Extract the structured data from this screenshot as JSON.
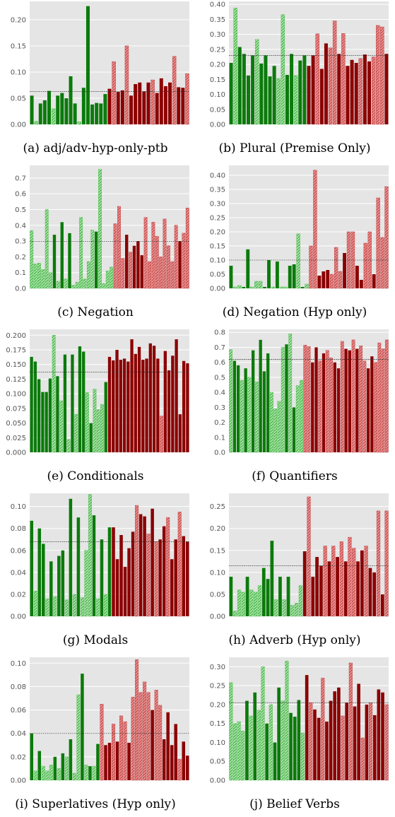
{
  "colors": {
    "background": "#e5e5e5",
    "dark_green": "#0b7a0b",
    "light_green": "#9ee89e",
    "dark_red": "#8b0000",
    "light_red": "#f08a8a",
    "reference_line": "#333333"
  },
  "chart_data": [
    {
      "type": "bar",
      "caption": "(a) adj/adv-hyp-only-ptb",
      "ylim": [
        0,
        0.235
      ],
      "yticks": [
        "0.00",
        "0.05",
        "0.10",
        "0.15",
        "0.20"
      ],
      "ytick_values": [
        0,
        0.05,
        0.1,
        0.15,
        0.2
      ],
      "reference_line": 0.063,
      "values": [
        0.055,
        0.006,
        0.04,
        0.046,
        0.064,
        0.03,
        0.055,
        0.06,
        0.05,
        0.092,
        0.04,
        0.005,
        0.07,
        0.226,
        0.038,
        0.041,
        0.04,
        0.058,
        0.068,
        0.12,
        0.062,
        0.065,
        0.15,
        0.055,
        0.077,
        0.08,
        0.063,
        0.08,
        0.085,
        0.06,
        0.088,
        0.073,
        0.08,
        0.13,
        0.071,
        0.07,
        0.097
      ],
      "kinds": [
        "G",
        "g",
        "G",
        "G",
        "G",
        "g",
        "G",
        "G",
        "G",
        "G",
        "G",
        "g",
        "G",
        "G",
        "G",
        "G",
        "G",
        "G",
        "R",
        "r",
        "R",
        "R",
        "r",
        "R",
        "R",
        "R",
        "R",
        "R",
        "r",
        "R",
        "R",
        "R",
        "R",
        "r",
        "R",
        "R",
        "r"
      ]
    },
    {
      "type": "bar",
      "caption": "(b) Plural (Premise Only)",
      "ylim": [
        0,
        0.41
      ],
      "yticks": [
        "0.00",
        "0.05",
        "0.10",
        "0.15",
        "0.20",
        "0.25",
        "0.30",
        "0.35",
        "0.40"
      ],
      "ytick_values": [
        0,
        0.05,
        0.1,
        0.15,
        0.2,
        0.25,
        0.3,
        0.35,
        0.4
      ],
      "reference_line": 0.23,
      "values": [
        0.205,
        0.388,
        0.258,
        0.235,
        0.163,
        0.23,
        0.283,
        0.203,
        0.23,
        0.16,
        0.195,
        0.153,
        0.366,
        0.165,
        0.235,
        0.163,
        0.213,
        0.23,
        0.195,
        0.23,
        0.302,
        0.185,
        0.27,
        0.255,
        0.345,
        0.235,
        0.303,
        0.195,
        0.215,
        0.205,
        0.22,
        0.233,
        0.21,
        0.225,
        0.33,
        0.325,
        0.235
      ],
      "kinds": [
        "G",
        "g",
        "G",
        "G",
        "G",
        "G",
        "g",
        "G",
        "G",
        "G",
        "G",
        "g",
        "g",
        "G",
        "G",
        "g",
        "G",
        "G",
        "R",
        "R",
        "r",
        "R",
        "R",
        "r",
        "r",
        "R",
        "r",
        "R",
        "R",
        "R",
        "r",
        "R",
        "R",
        "r",
        "r",
        "r",
        "R"
      ]
    },
    {
      "type": "bar",
      "caption": "(c) Negation",
      "ylim": [
        0,
        0.78
      ],
      "yticks": [
        "0.0",
        "0.1",
        "0.2",
        "0.3",
        "0.4",
        "0.5",
        "0.6",
        "0.7"
      ],
      "ytick_values": [
        0,
        0.1,
        0.2,
        0.3,
        0.4,
        0.5,
        0.6,
        0.7
      ],
      "reference_line": 0.298,
      "values": [
        0.366,
        0.155,
        0.16,
        0.12,
        0.5,
        0.1,
        0.34,
        0.045,
        0.42,
        0.06,
        0.35,
        0.02,
        0.04,
        0.45,
        0.06,
        0.17,
        0.37,
        0.36,
        0.755,
        0.03,
        0.11,
        0.135,
        0.41,
        0.52,
        0.19,
        0.34,
        0.23,
        0.27,
        0.3,
        0.21,
        0.45,
        0.17,
        0.42,
        0.33,
        0.2,
        0.44,
        0.27,
        0.17,
        0.4,
        0.3,
        0.35,
        0.51
      ],
      "kinds": [
        "g",
        "g",
        "g",
        "g",
        "g",
        "g",
        "G",
        "g",
        "G",
        "g",
        "G",
        "g",
        "g",
        "g",
        "g",
        "g",
        "g",
        "G",
        "g",
        "g",
        "g",
        "g",
        "r",
        "r",
        "r",
        "R",
        "r",
        "R",
        "R",
        "R",
        "r",
        "r",
        "r",
        "r",
        "r",
        "r",
        "r",
        "r",
        "r",
        "R",
        "r",
        "r"
      ]
    },
    {
      "type": "bar",
      "caption": "(d) Negation (Hyp only)",
      "ylim": [
        0,
        0.435
      ],
      "yticks": [
        "0.00",
        "0.05",
        "0.10",
        "0.15",
        "0.20",
        "0.25",
        "0.30",
        "0.35",
        "0.40"
      ],
      "ytick_values": [
        0,
        0.05,
        0.1,
        0.15,
        0.2,
        0.25,
        0.3,
        0.35,
        0.4
      ],
      "reference_line": 0.1,
      "values": [
        0.08,
        0.005,
        0.01,
        0.005,
        0.138,
        0.005,
        0.025,
        0.025,
        0.005,
        0.1,
        0.005,
        0.095,
        0.005,
        0.005,
        0.08,
        0.085,
        0.193,
        0.005,
        0.015,
        0.15,
        0.418,
        0.045,
        0.06,
        0.065,
        0.05,
        0.145,
        0.06,
        0.125,
        0.2,
        0.2,
        0.08,
        0.03,
        0.16,
        0.2,
        0.05,
        0.32,
        0.18,
        0.36
      ],
      "kinds": [
        "G",
        "g",
        "g",
        "G",
        "G",
        "g",
        "g",
        "g",
        "G",
        "G",
        "g",
        "G",
        "g",
        "g",
        "G",
        "G",
        "g",
        "G",
        "g",
        "r",
        "r",
        "R",
        "R",
        "R",
        "r",
        "r",
        "r",
        "R",
        "r",
        "r",
        "R",
        "R",
        "r",
        "r",
        "R",
        "r",
        "r",
        "r"
      ]
    },
    {
      "type": "bar",
      "caption": "(e) Conditionals",
      "ylim": [
        0,
        0.21
      ],
      "yticks": [
        "0.000",
        "0.025",
        "0.050",
        "0.075",
        "0.100",
        "0.125",
        "0.150",
        "0.175",
        "0.200"
      ],
      "ytick_values": [
        0,
        0.025,
        0.05,
        0.075,
        0.1,
        0.125,
        0.15,
        0.175,
        0.2
      ],
      "reference_line": 0.137,
      "values": [
        0.163,
        0.155,
        0.125,
        0.103,
        0.103,
        0.126,
        0.2,
        0.13,
        0.088,
        0.167,
        0.022,
        0.167,
        0.065,
        0.181,
        0.172,
        0.102,
        0.05,
        0.108,
        0.073,
        0.082,
        0.12,
        0.163,
        0.157,
        0.175,
        0.158,
        0.16,
        0.155,
        0.193,
        0.168,
        0.18,
        0.158,
        0.16,
        0.186,
        0.182,
        0.16,
        0.062,
        0.173,
        0.14,
        0.165,
        0.193,
        0.065,
        0.156,
        0.152
      ],
      "kinds": [
        "G",
        "G",
        "G",
        "G",
        "G",
        "G",
        "g",
        "G",
        "g",
        "G",
        "g",
        "G",
        "g",
        "G",
        "G",
        "g",
        "G",
        "g",
        "g",
        "g",
        "G",
        "R",
        "R",
        "R",
        "R",
        "R",
        "R",
        "R",
        "R",
        "R",
        "R",
        "R",
        "R",
        "R",
        "R",
        "r",
        "R",
        "R",
        "R",
        "R",
        "R",
        "R",
        "R"
      ]
    },
    {
      "type": "bar",
      "caption": "(f) Quantifiers",
      "ylim": [
        0,
        0.82
      ],
      "yticks": [
        "0.0",
        "0.1",
        "0.2",
        "0.3",
        "0.4",
        "0.5",
        "0.6",
        "0.7",
        "0.8"
      ],
      "ytick_values": [
        0,
        0.1,
        0.2,
        0.3,
        0.4,
        0.5,
        0.6,
        0.7,
        0.8
      ],
      "reference_line": 0.62,
      "values": [
        0.685,
        0.61,
        0.58,
        0.48,
        0.56,
        0.5,
        0.68,
        0.47,
        0.75,
        0.54,
        0.66,
        0.4,
        0.29,
        0.34,
        0.7,
        0.72,
        0.79,
        0.3,
        0.445,
        0.48,
        0.715,
        0.705,
        0.6,
        0.7,
        0.61,
        0.66,
        0.68,
        0.63,
        0.6,
        0.56,
        0.74,
        0.69,
        0.68,
        0.75,
        0.69,
        0.71,
        0.61,
        0.56,
        0.64,
        0.6,
        0.73,
        0.69,
        0.75
      ],
      "kinds": [
        "g",
        "G",
        "G",
        "g",
        "G",
        "g",
        "G",
        "g",
        "G",
        "G",
        "G",
        "g",
        "g",
        "g",
        "g",
        "G",
        "g",
        "G",
        "g",
        "g",
        "r",
        "r",
        "R",
        "R",
        "r",
        "R",
        "r",
        "r",
        "R",
        "R",
        "r",
        "R",
        "R",
        "r",
        "R",
        "r",
        "r",
        "R",
        "R",
        "r",
        "r",
        "r",
        "r"
      ]
    },
    {
      "type": "bar",
      "caption": "(g) Modals",
      "ylim": [
        0,
        0.112
      ],
      "yticks": [
        "0.00",
        "0.02",
        "0.04",
        "0.06",
        "0.08",
        "0.10"
      ],
      "ytick_values": [
        0,
        0.02,
        0.04,
        0.06,
        0.08,
        0.1
      ],
      "reference_line": 0.068,
      "values": [
        0.087,
        0.023,
        0.08,
        0.066,
        0.016,
        0.05,
        0.018,
        0.055,
        0.06,
        0.015,
        0.107,
        0.02,
        0.09,
        0.017,
        0.06,
        0.111,
        0.092,
        0.016,
        0.07,
        0.02,
        0.081,
        0.081,
        0.052,
        0.074,
        0.045,
        0.062,
        0.077,
        0.101,
        0.093,
        0.091,
        0.075,
        0.098,
        0.068,
        0.07,
        0.082,
        0.09,
        0.052,
        0.07,
        0.095,
        0.073,
        0.068
      ],
      "kinds": [
        "G",
        "g",
        "G",
        "G",
        "g",
        "G",
        "g",
        "G",
        "G",
        "g",
        "G",
        "g",
        "G",
        "g",
        "g",
        "g",
        "G",
        "g",
        "G",
        "g",
        "G",
        "R",
        "R",
        "R",
        "R",
        "R",
        "R",
        "r",
        "R",
        "R",
        "r",
        "R",
        "r",
        "R",
        "R",
        "r",
        "R",
        "R",
        "r",
        "R",
        "R"
      ]
    },
    {
      "type": "bar",
      "caption": "(h) Adverb (Hyp only)",
      "ylim": [
        0,
        0.28
      ],
      "yticks": [
        "0.00",
        "0.05",
        "0.10",
        "0.15",
        "0.20",
        "0.25"
      ],
      "ytick_values": [
        0,
        0.05,
        0.1,
        0.15,
        0.2,
        0.25
      ],
      "reference_line": 0.115,
      "values": [
        0.09,
        0.012,
        0.06,
        0.055,
        0.09,
        0.06,
        0.055,
        0.07,
        0.11,
        0.085,
        0.172,
        0.038,
        0.09,
        0.038,
        0.09,
        0.025,
        0.03,
        0.07,
        0.148,
        0.272,
        0.09,
        0.135,
        0.115,
        0.16,
        0.125,
        0.16,
        0.135,
        0.17,
        0.125,
        0.18,
        0.155,
        0.125,
        0.15,
        0.16,
        0.11,
        0.1,
        0.24,
        0.05,
        0.24
      ],
      "kinds": [
        "G",
        "g",
        "g",
        "g",
        "G",
        "g",
        "g",
        "g",
        "G",
        "G",
        "G",
        "g",
        "G",
        "g",
        "G",
        "g",
        "g",
        "g",
        "R",
        "r",
        "R",
        "R",
        "R",
        "r",
        "R",
        "r",
        "R",
        "r",
        "R",
        "r",
        "r",
        "R",
        "R",
        "r",
        "R",
        "R",
        "r",
        "R",
        "r"
      ]
    },
    {
      "type": "bar",
      "caption": "(i) Superlatives (Hyp only)",
      "ylim": [
        0,
        0.105
      ],
      "yticks": [
        "0.00",
        "0.02",
        "0.04",
        "0.06",
        "0.08",
        "0.10"
      ],
      "ytick_values": [
        0,
        0.02,
        0.04,
        0.06,
        0.08,
        0.1
      ],
      "reference_line": 0.04,
      "values": [
        0.04,
        0.008,
        0.025,
        0.012,
        0.008,
        0.013,
        0.02,
        0.01,
        0.023,
        0.02,
        0.035,
        0.006,
        0.073,
        0.091,
        0.013,
        0.012,
        0.012,
        0.031,
        0.065,
        0.03,
        0.032,
        0.048,
        0.033,
        0.055,
        0.05,
        0.032,
        0.071,
        0.103,
        0.075,
        0.084,
        0.075,
        0.06,
        0.077,
        0.064,
        0.035,
        0.058,
        0.03,
        0.048,
        0.018,
        0.033,
        0.021
      ],
      "kinds": [
        "G",
        "g",
        "G",
        "g",
        "g",
        "g",
        "G",
        "g",
        "G",
        "g",
        "G",
        "g",
        "g",
        "G",
        "g",
        "G",
        "g",
        "G",
        "r",
        "R",
        "R",
        "r",
        "R",
        "r",
        "r",
        "R",
        "r",
        "r",
        "r",
        "r",
        "r",
        "R",
        "r",
        "r",
        "R",
        "R",
        "R",
        "R",
        "r",
        "R",
        "R"
      ]
    },
    {
      "type": "bar",
      "caption": "(j) Belief Verbs",
      "ylim": [
        0,
        0.325
      ],
      "yticks": [
        "0.00",
        "0.05",
        "0.10",
        "0.15",
        "0.20",
        "0.25",
        "0.30"
      ],
      "ytick_values": [
        0,
        0.05,
        0.1,
        0.15,
        0.2,
        0.25,
        0.3
      ],
      "reference_line": 0.205,
      "values": [
        0.258,
        0.15,
        0.155,
        0.13,
        0.21,
        0.17,
        0.232,
        0.185,
        0.3,
        0.15,
        0.2,
        0.1,
        0.245,
        0.21,
        0.315,
        0.178,
        0.168,
        0.212,
        0.125,
        0.278,
        0.205,
        0.187,
        0.165,
        0.27,
        0.155,
        0.21,
        0.235,
        0.245,
        0.17,
        0.205,
        0.31,
        0.195,
        0.255,
        0.112,
        0.2,
        0.205,
        0.172,
        0.24,
        0.232,
        0.2
      ],
      "kinds": [
        "g",
        "g",
        "g",
        "g",
        "G",
        "g",
        "G",
        "g",
        "g",
        "G",
        "g",
        "G",
        "G",
        "g",
        "g",
        "G",
        "G",
        "G",
        "g",
        "R",
        "r",
        "R",
        "R",
        "r",
        "R",
        "R",
        "R",
        "R",
        "r",
        "R",
        "r",
        "R",
        "R",
        "r",
        "R",
        "r",
        "R",
        "R",
        "R",
        "r"
      ]
    }
  ]
}
